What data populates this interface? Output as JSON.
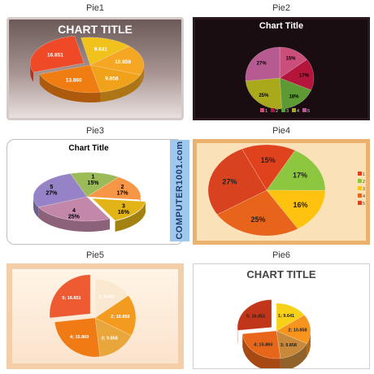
{
  "labels": {
    "pie1": "Pie1",
    "pie2": "Pie2",
    "pie3": "Pie3",
    "pie4": "Pie4",
    "pie5": "Pie5",
    "pie6": "Pie6"
  },
  "watermark": "COMPUTER1001.com",
  "chart_data": [
    {
      "type": "pie",
      "title": "CHART TITLE",
      "values": [
        9.641,
        10.858,
        9.858,
        13.86,
        16.851
      ],
      "data_labels": [
        "9.641",
        "10.858",
        "9.858",
        "13.860",
        "16.851"
      ],
      "colors": [
        "#f1c21b",
        "#f5a623",
        "#f0a21a",
        "#f07d11",
        "#ee4a27"
      ]
    },
    {
      "type": "pie",
      "title": "Chart Title",
      "values": [
        15,
        17,
        18,
        25,
        27
      ],
      "data_labels": [
        "15%",
        "17%",
        "18%",
        "25%",
        "27%"
      ],
      "legend": [
        "1",
        "2",
        "3",
        "4",
        "5"
      ],
      "colors": [
        "#c94f7a",
        "#b6153b",
        "#5e9a33",
        "#a9a91b",
        "#b65a91"
      ]
    },
    {
      "type": "pie",
      "title": "Chart Title",
      "categories": [
        "1",
        "2",
        "3",
        "4",
        "5"
      ],
      "values": [
        15,
        17,
        16,
        25,
        27
      ],
      "data_labels": [
        "1\n15%",
        "2\n17%",
        "3\n16%",
        "4\n25%",
        "5\n27%"
      ],
      "colors": [
        "#9bbb59",
        "#f79646",
        "#e3b418",
        "#c387aa",
        "#9683c7"
      ]
    },
    {
      "type": "pie",
      "title": "",
      "values": [
        15,
        17,
        16,
        25,
        27
      ],
      "data_labels": [
        "15%",
        "17%",
        "16%",
        "25%",
        "27%"
      ],
      "legend": [
        "1",
        "2",
        "3",
        "4",
        "5"
      ],
      "colors": [
        "#e0421e",
        "#8dc63f",
        "#ffc20e",
        "#e8641b",
        "#d9421f"
      ]
    },
    {
      "type": "pie",
      "title": "",
      "values": [
        9.641,
        10.858,
        9.858,
        15.86,
        16.851
      ],
      "data_labels": [
        "1; 9.641",
        "2; 10.858",
        "3; 9.858",
        "4; 15.860",
        "5; 16.851"
      ],
      "colors": [
        "#fbe8d0",
        "#f39b1f",
        "#e9a63b",
        "#f07a13",
        "#ee5b33"
      ]
    },
    {
      "type": "pie",
      "title": "CHART TITLE",
      "values": [
        9.641,
        10.858,
        9.858,
        15.86,
        16.851
      ],
      "data_labels": [
        "1; 9.641",
        "2; 10.858",
        "3; 9.858",
        "4; 15.860",
        "5; 16.851"
      ],
      "colors": [
        "#f7d118",
        "#f7941d",
        "#c9893b",
        "#e8661a",
        "#c1361b"
      ]
    }
  ]
}
